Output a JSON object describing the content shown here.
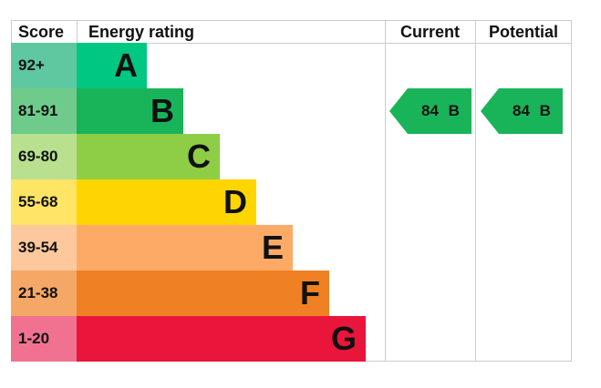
{
  "chart_data": {
    "type": "table",
    "headers": {
      "score": "Score",
      "rating": "Energy rating",
      "current": "Current",
      "potential": "Potential"
    },
    "bands": [
      {
        "score": "92+",
        "letter": "A",
        "color": "#00c781",
        "score_color": "#5ec8a0"
      },
      {
        "score": "81-91",
        "letter": "B",
        "color": "#19b459",
        "score_color": "#6ecb8c"
      },
      {
        "score": "69-80",
        "letter": "C",
        "color": "#8dce46",
        "score_color": "#b8e08e"
      },
      {
        "score": "55-68",
        "letter": "D",
        "color": "#ffd500",
        "score_color": "#ffe466"
      },
      {
        "score": "39-54",
        "letter": "E",
        "color": "#fcaa65",
        "score_color": "#fdc89c"
      },
      {
        "score": "21-38",
        "letter": "F",
        "color": "#ef8023",
        "score_color": "#f5a866"
      },
      {
        "score": "1-20",
        "letter": "G",
        "color": "#e9153b",
        "score_color": "#f07290"
      }
    ],
    "current": {
      "value": 84,
      "band": "B",
      "label": "84 B",
      "color": "#19b459"
    },
    "potential": {
      "value": 84,
      "band": "B",
      "label": "84 B",
      "color": "#19b459"
    }
  }
}
